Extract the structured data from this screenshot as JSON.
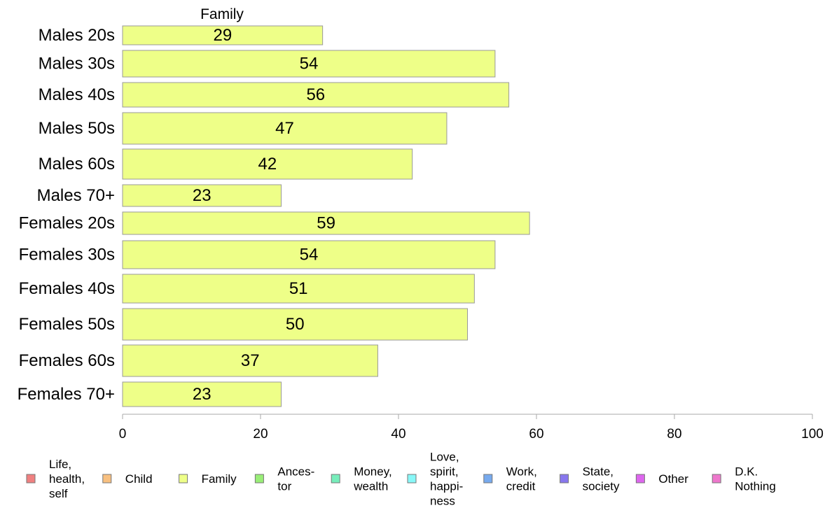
{
  "chart_data": {
    "type": "bar",
    "orientation": "horizontal",
    "series_title": "Family",
    "categories": [
      "Males 20s",
      "Males 30s",
      "Males 40s",
      "Males 50s",
      "Males 60s",
      "Males 70+",
      "Females 20s",
      "Females 30s",
      "Females 40s",
      "Females 50s",
      "Females 60s",
      "Females 70+"
    ],
    "series": [
      {
        "name": "Family",
        "color": "#eeff88",
        "values": [
          29,
          54,
          56,
          47,
          42,
          23,
          59,
          54,
          51,
          50,
          37,
          23
        ]
      }
    ],
    "xlim": [
      0,
      100
    ],
    "xticks": [
      0,
      20,
      40,
      60,
      80,
      100
    ],
    "grid": false,
    "legend_position": "bottom",
    "legend": [
      {
        "label": "Life,\nhealth,\nself",
        "color": "#f08080"
      },
      {
        "label": "Child",
        "color": "#f8c080"
      },
      {
        "label": "Family",
        "color": "#eeff88"
      },
      {
        "label": "Ances-\ntor",
        "color": "#99ee77"
      },
      {
        "label": "Money,\nwealth",
        "color": "#77eebb"
      },
      {
        "label": "Love,\nspirit,\nhappi-\nness",
        "color": "#88f8f8"
      },
      {
        "label": "Work,\ncredit",
        "color": "#77aaee"
      },
      {
        "label": "State,\nsociety",
        "color": "#8877ee"
      },
      {
        "label": "Other",
        "color": "#dd66ee"
      },
      {
        "label": "D.K.\nNothing",
        "color": "#ee77cc"
      }
    ]
  }
}
